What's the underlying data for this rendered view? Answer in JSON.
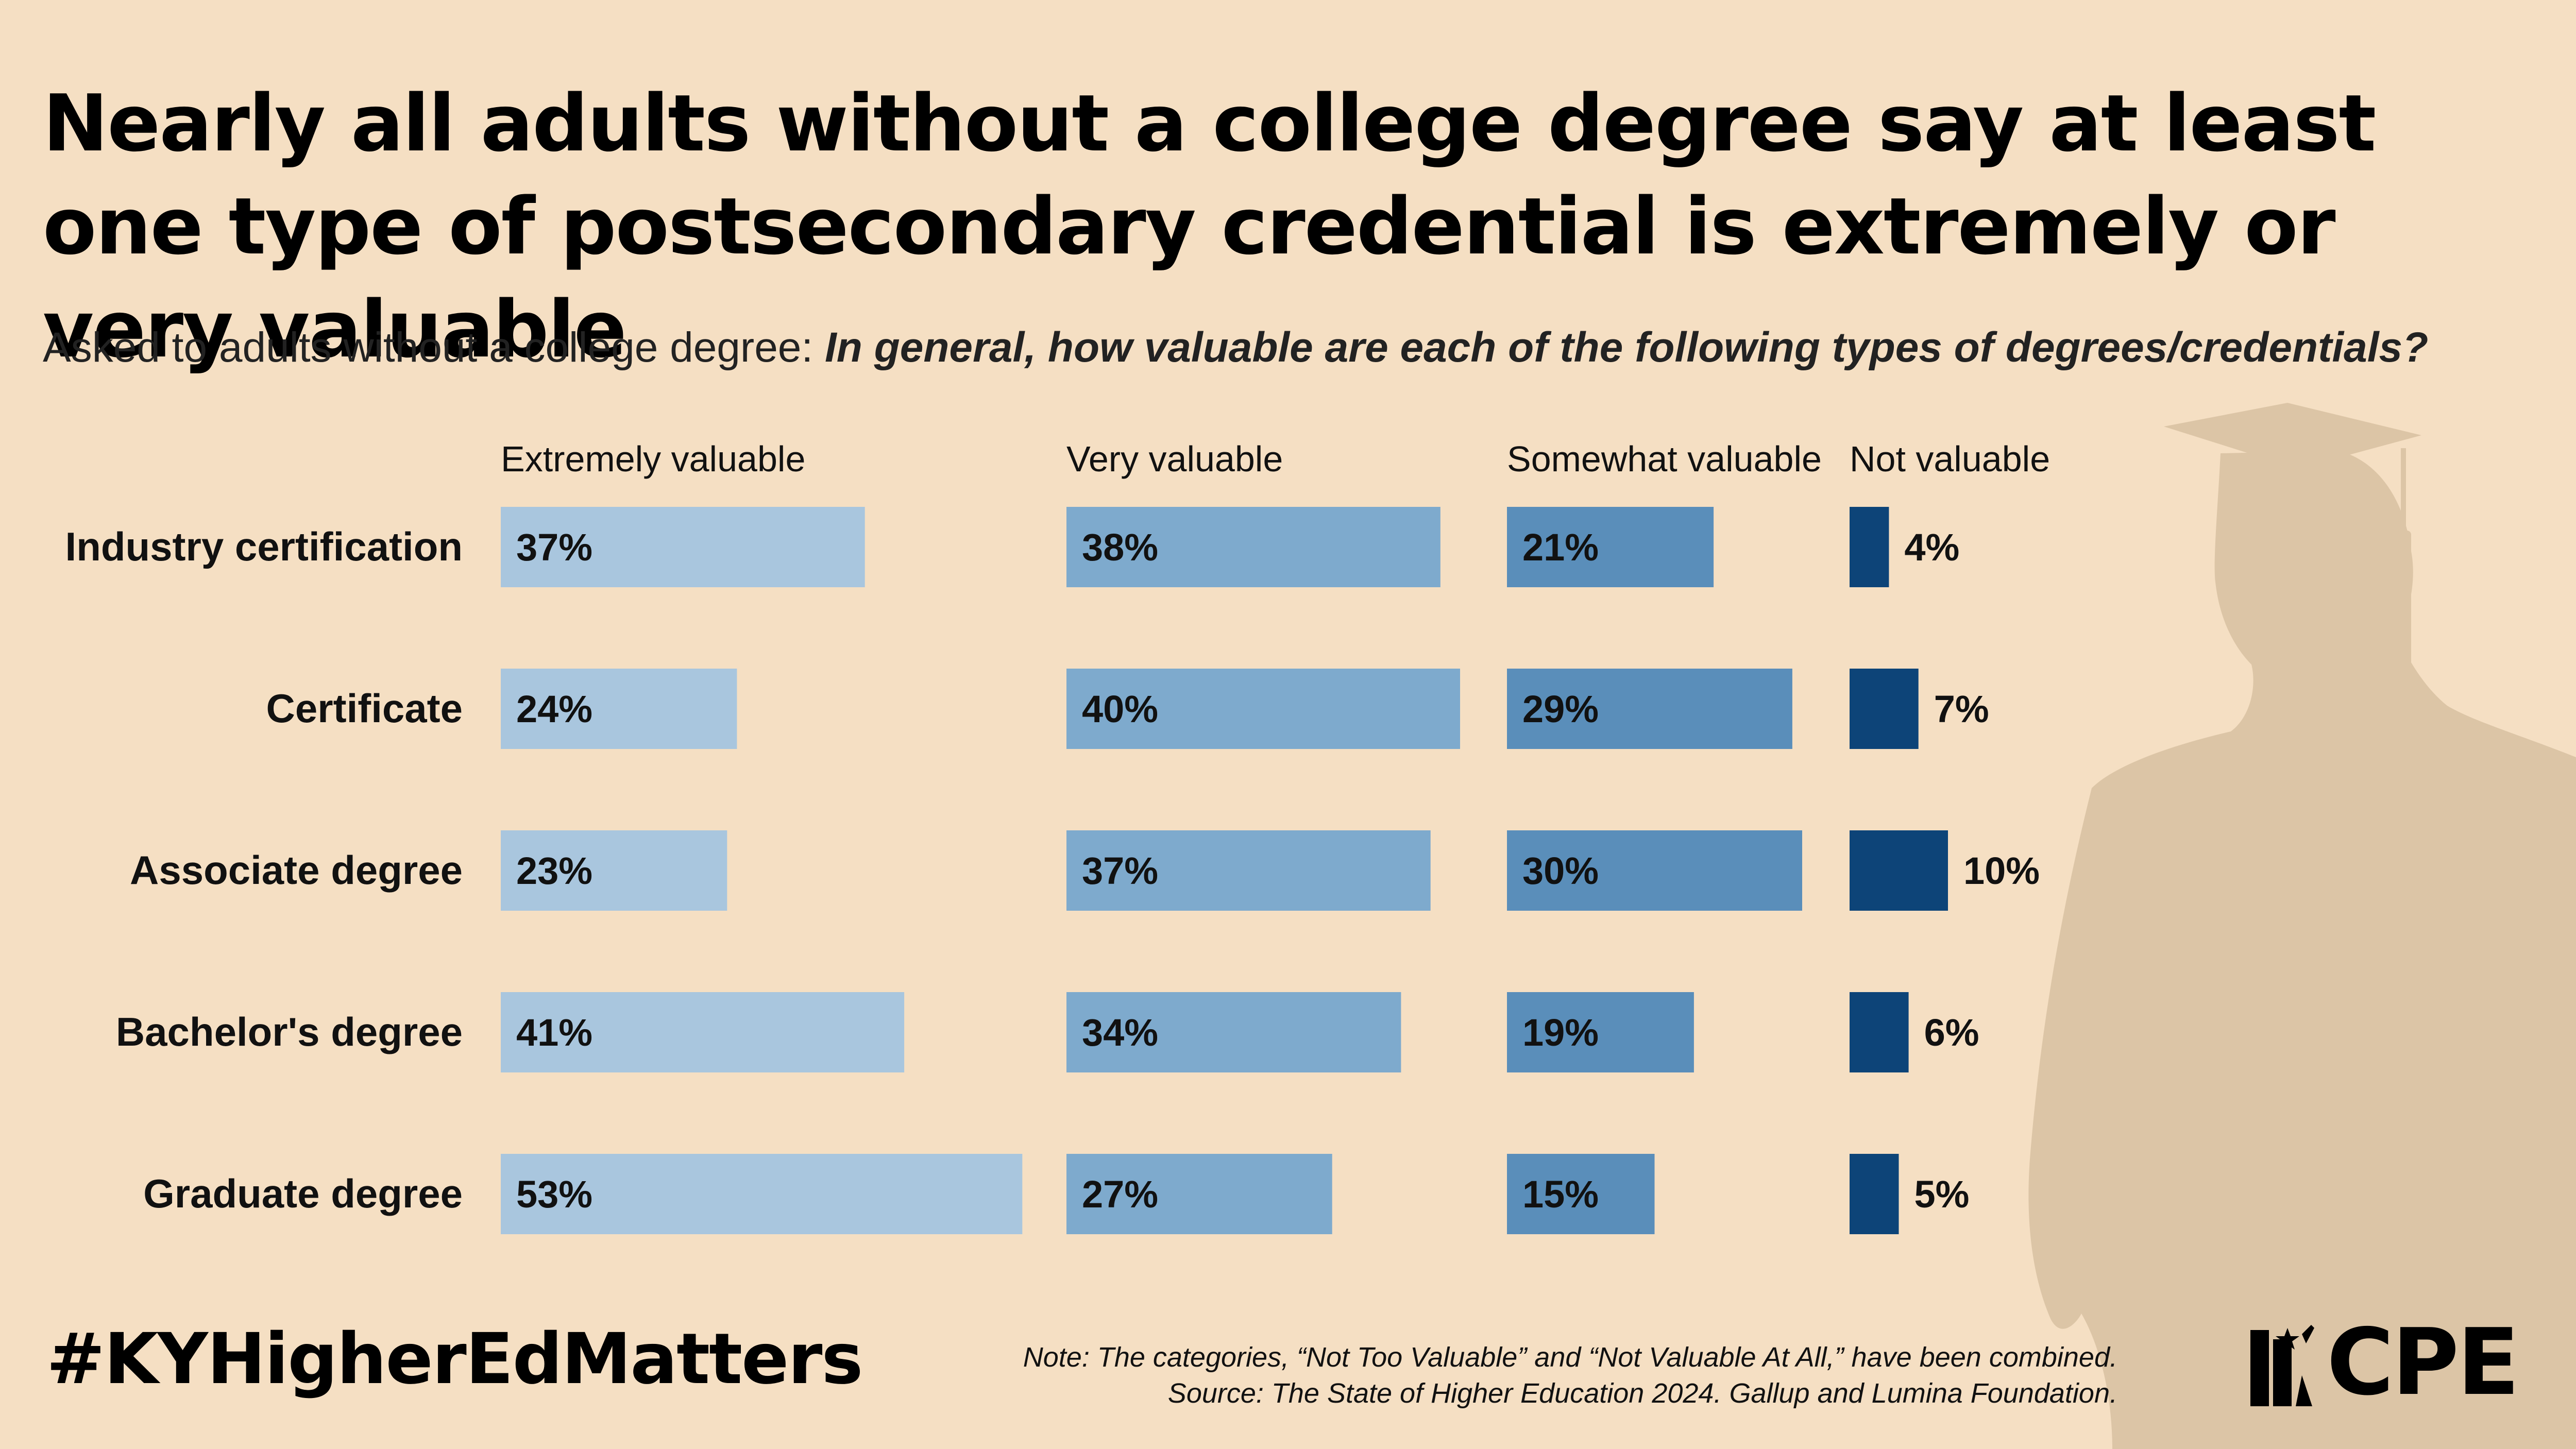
{
  "header": {
    "title": "Nearly all adults without a college degree say at least one type of postsecondary credential is extremely or very valuable",
    "subtitle_prefix": "Asked to adults ",
    "subtitle_emph": "without",
    "subtitle_middle": " a college degree: ",
    "subtitle_question": "In general, how valuable are each of the following types of degrees/credentials?"
  },
  "footer": {
    "hashtag": "#KYHigherEdMatters",
    "note": "Note: The categories, “Not Too Valuable” and “Not Valuable At All,” have been combined.",
    "source": "Source: The State of Higher Education 2024. Gallup and Lumina Foundation.",
    "logo_text": "CPE"
  },
  "colors": {
    "background": "#f5dfc3",
    "silhouette": "#dcc5a6",
    "extremely": "#a9c6de",
    "very": "#7eaacd",
    "somewhat": "#5a8eba",
    "not": "#0d4478"
  },
  "chart_data": {
    "type": "bar",
    "categories": [
      "Industry certification",
      "Certificate",
      "Associate degree",
      "Bachelor's degree",
      "Graduate degree"
    ],
    "series": [
      {
        "name": "Extremely valuable",
        "values": [
          37,
          24,
          23,
          41,
          53
        ],
        "labels": [
          "37%",
          "24%",
          "23%",
          "41%",
          "53%"
        ]
      },
      {
        "name": "Very valuable",
        "values": [
          38,
          40,
          37,
          34,
          27
        ],
        "labels": [
          "38%",
          "40%",
          "37%",
          "34%",
          "27%"
        ]
      },
      {
        "name": "Somewhat valuable",
        "values": [
          21,
          29,
          30,
          19,
          15
        ],
        "labels": [
          "21%",
          "29%",
          "30%",
          "19%",
          "15%"
        ]
      },
      {
        "name": "Not valuable",
        "values": [
          4,
          7,
          10,
          6,
          5
        ],
        "labels": [
          "4%",
          "7%",
          "10%",
          "6%",
          "5%"
        ]
      }
    ],
    "unit": "%",
    "layout": "small-multiples, one column per response category",
    "legend": "column headers at top"
  }
}
